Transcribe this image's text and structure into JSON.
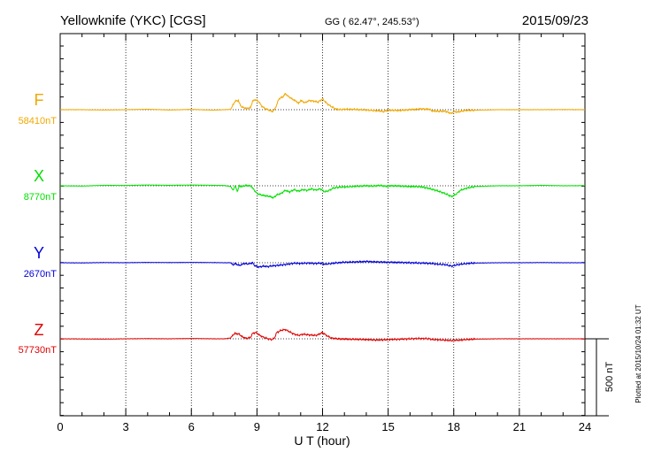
{
  "header": {
    "station": "Yellowknife (YKC)  [CGS]",
    "coords": "GG ( 62.47°, 245.53°)",
    "date": "2015/09/23"
  },
  "side_note": "Plotted at 2015/10/24 01:32 UT",
  "scale_label": "500 nT",
  "chart_data": {
    "type": "line",
    "xlabel": "U T (hour)",
    "xlim": [
      0,
      24
    ],
    "xticks": [
      0,
      3,
      6,
      9,
      12,
      15,
      18,
      21,
      24
    ],
    "grid": true,
    "scale_bar_nT": 500,
    "series": [
      {
        "name": "F",
        "baseline": "58410nT",
        "color": "#f0a800",
        "points": [
          [
            0,
            0
          ],
          [
            1,
            0
          ],
          [
            2,
            -2
          ],
          [
            3,
            0
          ],
          [
            4,
            3
          ],
          [
            5,
            -2
          ],
          [
            6,
            2
          ],
          [
            7,
            -3
          ],
          [
            7.5,
            0
          ],
          [
            7.8,
            2
          ],
          [
            7.9,
            30
          ],
          [
            8.0,
            55
          ],
          [
            8.15,
            60
          ],
          [
            8.2,
            40
          ],
          [
            8.3,
            18
          ],
          [
            8.5,
            8
          ],
          [
            8.7,
            12
          ],
          [
            8.8,
            55
          ],
          [
            8.9,
            65
          ],
          [
            9.0,
            60
          ],
          [
            9.1,
            50
          ],
          [
            9.2,
            25
          ],
          [
            9.4,
            5
          ],
          [
            9.6,
            -5
          ],
          [
            9.7,
            -12
          ],
          [
            9.8,
            0
          ],
          [
            9.9,
            30
          ],
          [
            10.0,
            70
          ],
          [
            10.2,
            85
          ],
          [
            10.3,
            105
          ],
          [
            10.4,
            90
          ],
          [
            10.6,
            70
          ],
          [
            10.8,
            55
          ],
          [
            10.9,
            40
          ],
          [
            11.0,
            60
          ],
          [
            11.2,
            45
          ],
          [
            11.4,
            60
          ],
          [
            11.6,
            55
          ],
          [
            11.8,
            50
          ],
          [
            12.0,
            70
          ],
          [
            12.2,
            40
          ],
          [
            12.4,
            20
          ],
          [
            12.6,
            5
          ],
          [
            12.8,
            0
          ],
          [
            13.0,
            3
          ],
          [
            13.5,
            2
          ],
          [
            14.0,
            -2
          ],
          [
            14.3,
            -5
          ],
          [
            14.6,
            -8
          ],
          [
            14.8,
            -12
          ],
          [
            15.0,
            -3
          ],
          [
            15.5,
            -5
          ],
          [
            16.0,
            0
          ],
          [
            16.5,
            5
          ],
          [
            16.9,
            3
          ],
          [
            17.0,
            -8
          ],
          [
            17.3,
            -10
          ],
          [
            17.6,
            -10
          ],
          [
            17.9,
            -25
          ],
          [
            18.0,
            -12
          ],
          [
            18.2,
            -15
          ],
          [
            18.5,
            -5
          ],
          [
            19.0,
            -3
          ],
          [
            20,
            0
          ],
          [
            21,
            0
          ],
          [
            22,
            0
          ],
          [
            23,
            1
          ],
          [
            24,
            0
          ]
        ]
      },
      {
        "name": "X",
        "baseline": "8770nT",
        "color": "#00e000",
        "points": [
          [
            0,
            0
          ],
          [
            1,
            -2
          ],
          [
            2,
            3
          ],
          [
            3,
            2
          ],
          [
            4,
            5
          ],
          [
            5,
            3
          ],
          [
            6,
            5
          ],
          [
            7,
            3
          ],
          [
            7.5,
            2
          ],
          [
            7.8,
            -5
          ],
          [
            7.9,
            -30
          ],
          [
            8.0,
            0
          ],
          [
            8.1,
            -35
          ],
          [
            8.2,
            0
          ],
          [
            8.3,
            -5
          ],
          [
            8.5,
            2
          ],
          [
            8.7,
            0
          ],
          [
            8.8,
            -15
          ],
          [
            9.0,
            -50
          ],
          [
            9.2,
            -60
          ],
          [
            9.4,
            -65
          ],
          [
            9.6,
            -70
          ],
          [
            9.75,
            -78
          ],
          [
            9.9,
            -60
          ],
          [
            10.1,
            -50
          ],
          [
            10.3,
            -30
          ],
          [
            10.5,
            -40
          ],
          [
            10.7,
            -25
          ],
          [
            10.9,
            -35
          ],
          [
            11.1,
            -25
          ],
          [
            11.3,
            -30
          ],
          [
            11.5,
            -20
          ],
          [
            11.7,
            -28
          ],
          [
            11.9,
            -20
          ],
          [
            12.1,
            -40
          ],
          [
            12.3,
            -30
          ],
          [
            12.5,
            -15
          ],
          [
            12.7,
            -10
          ],
          [
            13.0,
            -8
          ],
          [
            13.3,
            -5
          ],
          [
            13.6,
            -3
          ],
          [
            14.0,
            0
          ],
          [
            14.3,
            -2
          ],
          [
            14.6,
            2
          ],
          [
            14.9,
            -3
          ],
          [
            15.2,
            0
          ],
          [
            15.6,
            -2
          ],
          [
            16.0,
            -5
          ],
          [
            16.4,
            -5
          ],
          [
            16.8,
            -15
          ],
          [
            17.2,
            -30
          ],
          [
            17.6,
            -50
          ],
          [
            17.9,
            -70
          ],
          [
            18.1,
            -55
          ],
          [
            18.3,
            -30
          ],
          [
            18.6,
            -15
          ],
          [
            19.0,
            -5
          ],
          [
            20,
            0
          ],
          [
            21,
            0
          ],
          [
            22,
            3
          ],
          [
            23,
            0
          ],
          [
            24,
            1
          ]
        ]
      },
      {
        "name": "Y",
        "baseline": "2670nT",
        "color": "#0000d8",
        "points": [
          [
            0,
            0
          ],
          [
            1,
            -1
          ],
          [
            2,
            1
          ],
          [
            3,
            0
          ],
          [
            4,
            2
          ],
          [
            5,
            1
          ],
          [
            6,
            2
          ],
          [
            7,
            1
          ],
          [
            7.5,
            0
          ],
          [
            7.8,
            0
          ],
          [
            7.9,
            -15
          ],
          [
            8.0,
            -5
          ],
          [
            8.2,
            -18
          ],
          [
            8.4,
            -5
          ],
          [
            8.6,
            -8
          ],
          [
            8.8,
            0
          ],
          [
            8.9,
            -20
          ],
          [
            9.1,
            -28
          ],
          [
            9.3,
            -22
          ],
          [
            9.5,
            -25
          ],
          [
            9.7,
            -20
          ],
          [
            9.9,
            -18
          ],
          [
            10.1,
            -15
          ],
          [
            10.4,
            -10
          ],
          [
            10.7,
            -3
          ],
          [
            11.0,
            -5
          ],
          [
            11.3,
            -2
          ],
          [
            11.6,
            -5
          ],
          [
            11.9,
            -3
          ],
          [
            12.1,
            -10
          ],
          [
            12.4,
            -5
          ],
          [
            12.7,
            0
          ],
          [
            13.0,
            3
          ],
          [
            13.5,
            5
          ],
          [
            14.0,
            8
          ],
          [
            14.5,
            5
          ],
          [
            15.0,
            3
          ],
          [
            15.5,
            2
          ],
          [
            16.0,
            0
          ],
          [
            16.5,
            -2
          ],
          [
            17.0,
            -5
          ],
          [
            17.3,
            -10
          ],
          [
            17.6,
            -12
          ],
          [
            17.9,
            -22
          ],
          [
            18.1,
            -15
          ],
          [
            18.3,
            -10
          ],
          [
            18.6,
            -5
          ],
          [
            19.0,
            -2
          ],
          [
            20,
            0
          ],
          [
            21,
            0
          ],
          [
            22,
            1
          ],
          [
            23,
            0
          ],
          [
            24,
            0
          ]
        ]
      },
      {
        "name": "Z",
        "baseline": "57730nT",
        "color": "#e00000",
        "points": [
          [
            0,
            0
          ],
          [
            1,
            -1
          ],
          [
            2,
            -2
          ],
          [
            3,
            0
          ],
          [
            4,
            1
          ],
          [
            5,
            0
          ],
          [
            6,
            2
          ],
          [
            7,
            0
          ],
          [
            7.5,
            0
          ],
          [
            7.8,
            5
          ],
          [
            7.9,
            25
          ],
          [
            8.0,
            35
          ],
          [
            8.2,
            30
          ],
          [
            8.3,
            15
          ],
          [
            8.5,
            3
          ],
          [
            8.7,
            8
          ],
          [
            8.8,
            35
          ],
          [
            8.9,
            40
          ],
          [
            9.0,
            38
          ],
          [
            9.1,
            25
          ],
          [
            9.3,
            10
          ],
          [
            9.5,
            0
          ],
          [
            9.7,
            -5
          ],
          [
            9.8,
            5
          ],
          [
            9.9,
            40
          ],
          [
            10.1,
            55
          ],
          [
            10.3,
            60
          ],
          [
            10.5,
            45
          ],
          [
            10.7,
            30
          ],
          [
            10.9,
            22
          ],
          [
            11.1,
            30
          ],
          [
            11.4,
            25
          ],
          [
            11.7,
            22
          ],
          [
            12.0,
            40
          ],
          [
            12.2,
            20
          ],
          [
            12.4,
            5
          ],
          [
            12.7,
            0
          ],
          [
            13.0,
            -2
          ],
          [
            13.5,
            -3
          ],
          [
            14.0,
            -5
          ],
          [
            14.5,
            -8
          ],
          [
            15.0,
            -5
          ],
          [
            15.5,
            -3
          ],
          [
            16.0,
            0
          ],
          [
            16.5,
            2
          ],
          [
            16.9,
            0
          ],
          [
            17.0,
            -5
          ],
          [
            17.3,
            -6
          ],
          [
            17.6,
            -8
          ],
          [
            17.9,
            -12
          ],
          [
            18.0,
            -8
          ],
          [
            18.2,
            -10
          ],
          [
            18.5,
            -5
          ],
          [
            19.0,
            -2
          ],
          [
            20,
            0
          ],
          [
            21,
            0
          ],
          [
            22,
            0
          ],
          [
            23,
            0
          ],
          [
            24,
            0
          ]
        ]
      }
    ]
  }
}
